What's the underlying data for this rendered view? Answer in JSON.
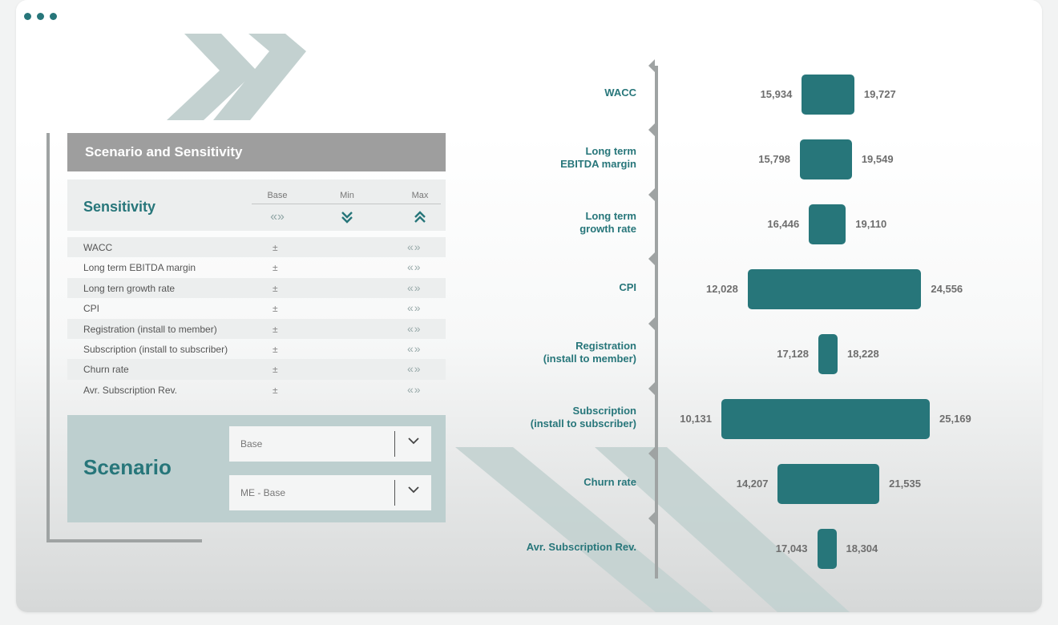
{
  "window": {
    "dots": 3
  },
  "panel": {
    "title": "Scenario and Sensitivity",
    "sensitivity_title": "Sensitivity",
    "columns": [
      "Base",
      "Min",
      "Max"
    ],
    "rows": [
      {
        "label": "WACC",
        "pm": "±",
        "arrows": "«»"
      },
      {
        "label": "Long term EBITDA margin",
        "pm": "±",
        "arrows": "«»"
      },
      {
        "label": "Long tern growth rate",
        "pm": "±",
        "arrows": "«»"
      },
      {
        "label": "CPI",
        "pm": "±",
        "arrows": "«»"
      },
      {
        "label": "Registration (install to member)",
        "pm": "±",
        "arrows": "«»"
      },
      {
        "label": "Subscription (install to subscriber)",
        "pm": "±",
        "arrows": "«»"
      },
      {
        "label": "Churn rate",
        "pm": "±",
        "arrows": "«»"
      },
      {
        "label": "Avr. Subscription Rev.",
        "pm": "±",
        "arrows": "«»"
      }
    ],
    "scenario_title": "Scenario",
    "scenario_select": "Base",
    "scenario_sub_select": "ME - Base",
    "colors": {
      "accent": "#27767a",
      "header_gray": "#9e9e9e",
      "scenario_bg": "#bdcfcf"
    }
  },
  "chart_data": {
    "type": "bar",
    "subtype": "tornado",
    "categories": [
      "WACC",
      "Long term\nEBITDA margin",
      "Long term\ngrowth rate",
      "CPI",
      "Registration\n(install to member)",
      "Subscription\n(install to subscriber)",
      "Churn rate",
      "Avr. Subscription Rev."
    ],
    "low": [
      15934,
      15798,
      16446,
      12028,
      17128,
      10131,
      14207,
      17043
    ],
    "high": [
      19727,
      19549,
      19110,
      24556,
      18228,
      25169,
      21535,
      18304
    ],
    "low_labels": [
      "15,934",
      "15,798",
      "16,446",
      "12,028",
      "17,128",
      "10,131",
      "14,207",
      "17,043"
    ],
    "high_labels": [
      "19,727",
      "19,549",
      "19,110",
      "24,556",
      "18,228",
      "25,169",
      "21,535",
      "18,304"
    ],
    "bar_color": "#27767a"
  }
}
